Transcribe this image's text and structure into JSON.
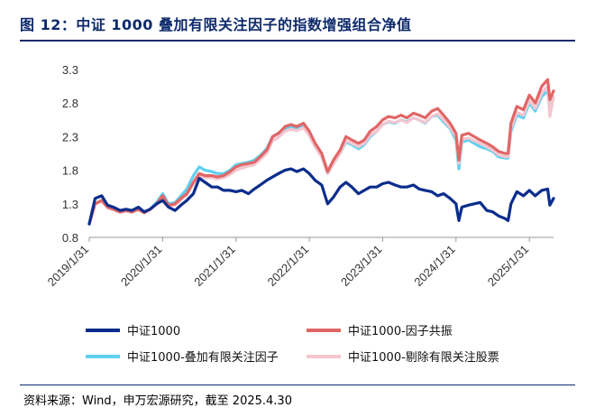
{
  "title": "图 12：中证 1000 叠加有限关注因子的指数增强组合净值",
  "source": "资料来源：Wind，申万宏源研究，截至 2025.4.30",
  "colors": {
    "title": "#0d2a6b",
    "csi1000": "#0a2d8c",
    "resonance": "#e06666",
    "overlay": "#5fd0f0",
    "excluding": "#f4c6cf",
    "axis": "#999999"
  },
  "chart_data": {
    "type": "line",
    "title": "中证 1000 叠加有限关注因子的指数增强组合净值",
    "xlabel": "",
    "ylabel": "",
    "x_ticks": [
      "2019/1/31",
      "2020/1/31",
      "2021/1/31",
      "2022/1/31",
      "2023/1/31",
      "2024/1/31",
      "2025/1/31"
    ],
    "x_range": [
      2019.0,
      2025.33
    ],
    "ylim": [
      0.8,
      3.3
    ],
    "y_ticks": [
      0.8,
      1.3,
      1.8,
      2.3,
      2.8,
      3.3
    ],
    "y_tick_labels": [
      "0.8",
      "1.3",
      "1.8",
      "2.3",
      "2.8",
      "3.3"
    ],
    "legend_position": "bottom",
    "series": [
      {
        "name": "中证1000",
        "color": "#0a2d8c",
        "width": 3.2,
        "x": [
          2019.0,
          2019.08,
          2019.17,
          2019.25,
          2019.33,
          2019.42,
          2019.5,
          2019.58,
          2019.67,
          2019.75,
          2019.83,
          2019.92,
          2020.0,
          2020.08,
          2020.17,
          2020.25,
          2020.33,
          2020.42,
          2020.5,
          2020.58,
          2020.67,
          2020.75,
          2020.83,
          2020.92,
          2021.0,
          2021.08,
          2021.17,
          2021.25,
          2021.33,
          2021.42,
          2021.5,
          2021.58,
          2021.67,
          2021.75,
          2021.83,
          2021.92,
          2022.0,
          2022.08,
          2022.17,
          2022.25,
          2022.33,
          2022.42,
          2022.5,
          2022.58,
          2022.67,
          2022.75,
          2022.83,
          2022.92,
          2023.0,
          2023.08,
          2023.17,
          2023.25,
          2023.33,
          2023.42,
          2023.5,
          2023.58,
          2023.67,
          2023.75,
          2023.83,
          2023.92,
          2024.0,
          2024.04,
          2024.08,
          2024.17,
          2024.25,
          2024.33,
          2024.42,
          2024.5,
          2024.58,
          2024.67,
          2024.71,
          2024.75,
          2024.83,
          2024.92,
          2025.0,
          2025.08,
          2025.17,
          2025.25,
          2025.28,
          2025.33
        ],
        "y": [
          1.0,
          1.38,
          1.42,
          1.28,
          1.25,
          1.2,
          1.22,
          1.2,
          1.25,
          1.18,
          1.22,
          1.3,
          1.35,
          1.25,
          1.2,
          1.28,
          1.35,
          1.45,
          1.68,
          1.62,
          1.55,
          1.55,
          1.5,
          1.5,
          1.48,
          1.5,
          1.45,
          1.52,
          1.58,
          1.65,
          1.7,
          1.75,
          1.8,
          1.82,
          1.78,
          1.82,
          1.75,
          1.65,
          1.58,
          1.3,
          1.4,
          1.55,
          1.62,
          1.55,
          1.45,
          1.5,
          1.55,
          1.55,
          1.6,
          1.62,
          1.58,
          1.55,
          1.55,
          1.58,
          1.52,
          1.5,
          1.48,
          1.42,
          1.45,
          1.38,
          1.3,
          1.05,
          1.25,
          1.28,
          1.3,
          1.32,
          1.2,
          1.18,
          1.12,
          1.08,
          1.05,
          1.3,
          1.48,
          1.42,
          1.5,
          1.42,
          1.5,
          1.52,
          1.28,
          1.38
        ]
      },
      {
        "name": "中证1000-因子共振",
        "color": "#e06666",
        "width": 3.2,
        "x": [
          2019.0,
          2019.08,
          2019.17,
          2019.25,
          2019.33,
          2019.42,
          2019.5,
          2019.58,
          2019.67,
          2019.75,
          2019.83,
          2019.92,
          2020.0,
          2020.08,
          2020.17,
          2020.25,
          2020.33,
          2020.42,
          2020.5,
          2020.58,
          2020.67,
          2020.75,
          2020.83,
          2020.92,
          2021.0,
          2021.08,
          2021.17,
          2021.25,
          2021.33,
          2021.42,
          2021.5,
          2021.58,
          2021.67,
          2021.75,
          2021.83,
          2021.92,
          2022.0,
          2022.08,
          2022.17,
          2022.25,
          2022.33,
          2022.42,
          2022.5,
          2022.58,
          2022.67,
          2022.75,
          2022.83,
          2022.92,
          2023.0,
          2023.08,
          2023.17,
          2023.25,
          2023.33,
          2023.42,
          2023.5,
          2023.58,
          2023.67,
          2023.75,
          2023.83,
          2023.92,
          2024.0,
          2024.04,
          2024.08,
          2024.17,
          2024.25,
          2024.33,
          2024.42,
          2024.5,
          2024.58,
          2024.67,
          2024.71,
          2024.75,
          2024.83,
          2024.92,
          2025.0,
          2025.08,
          2025.17,
          2025.25,
          2025.28,
          2025.33
        ],
        "y": [
          1.0,
          1.3,
          1.35,
          1.25,
          1.22,
          1.18,
          1.2,
          1.18,
          1.22,
          1.17,
          1.22,
          1.3,
          1.42,
          1.28,
          1.3,
          1.38,
          1.45,
          1.62,
          1.75,
          1.72,
          1.72,
          1.7,
          1.72,
          1.78,
          1.85,
          1.88,
          1.9,
          1.92,
          2.0,
          2.1,
          2.3,
          2.35,
          2.45,
          2.48,
          2.45,
          2.5,
          2.38,
          2.2,
          2.05,
          1.78,
          1.95,
          2.1,
          2.3,
          2.25,
          2.2,
          2.25,
          2.38,
          2.45,
          2.55,
          2.6,
          2.58,
          2.62,
          2.58,
          2.65,
          2.62,
          2.58,
          2.68,
          2.72,
          2.62,
          2.5,
          2.35,
          1.95,
          2.32,
          2.35,
          2.3,
          2.25,
          2.2,
          2.15,
          2.08,
          2.05,
          2.05,
          2.5,
          2.75,
          2.7,
          2.92,
          2.8,
          3.05,
          3.15,
          2.85,
          2.98
        ]
      },
      {
        "name": "中证1000-叠加有限关注因子",
        "color": "#5fd0f0",
        "width": 3.2,
        "x": [
          2019.0,
          2019.08,
          2019.17,
          2019.25,
          2019.33,
          2019.42,
          2019.5,
          2019.58,
          2019.67,
          2019.75,
          2019.83,
          2019.92,
          2020.0,
          2020.08,
          2020.17,
          2020.25,
          2020.33,
          2020.42,
          2020.5,
          2020.58,
          2020.67,
          2020.75,
          2020.83,
          2020.92,
          2021.0,
          2021.08,
          2021.17,
          2021.25,
          2021.33,
          2021.42,
          2021.5,
          2021.58,
          2021.67,
          2021.75,
          2021.83,
          2021.92,
          2022.0,
          2022.08,
          2022.17,
          2022.25,
          2022.33,
          2022.42,
          2022.5,
          2022.58,
          2022.67,
          2022.75,
          2022.83,
          2022.92,
          2023.0,
          2023.08,
          2023.17,
          2023.25,
          2023.33,
          2023.42,
          2023.5,
          2023.58,
          2023.67,
          2023.75,
          2023.83,
          2023.92,
          2024.0,
          2024.04,
          2024.08,
          2024.17,
          2024.25,
          2024.33,
          2024.42,
          2024.5,
          2024.58,
          2024.67,
          2024.71,
          2024.75,
          2024.83,
          2024.92,
          2025.0,
          2025.08,
          2025.17,
          2025.25,
          2025.28,
          2025.33
        ],
        "y": [
          1.0,
          1.3,
          1.35,
          1.25,
          1.22,
          1.18,
          1.2,
          1.18,
          1.22,
          1.17,
          1.22,
          1.32,
          1.45,
          1.3,
          1.32,
          1.42,
          1.52,
          1.72,
          1.85,
          1.8,
          1.78,
          1.75,
          1.75,
          1.8,
          1.88,
          1.9,
          1.92,
          1.95,
          2.02,
          2.12,
          2.3,
          2.35,
          2.4,
          2.45,
          2.42,
          2.45,
          2.32,
          2.15,
          2.0,
          1.75,
          1.9,
          2.05,
          2.22,
          2.18,
          2.12,
          2.18,
          2.3,
          2.38,
          2.48,
          2.52,
          2.5,
          2.55,
          2.52,
          2.58,
          2.55,
          2.5,
          2.6,
          2.62,
          2.52,
          2.42,
          2.25,
          1.82,
          2.22,
          2.25,
          2.2,
          2.15,
          2.12,
          2.08,
          2.0,
          1.98,
          1.98,
          2.38,
          2.62,
          2.58,
          2.8,
          2.68,
          2.9,
          2.98,
          2.7,
          2.88
        ]
      },
      {
        "name": "中证1000-剔除有限关注股票",
        "color": "#f4c6cf",
        "width": 3.2,
        "x": [
          2019.0,
          2019.08,
          2019.17,
          2019.25,
          2019.33,
          2019.42,
          2019.5,
          2019.58,
          2019.67,
          2019.75,
          2019.83,
          2019.92,
          2020.0,
          2020.08,
          2020.17,
          2020.25,
          2020.33,
          2020.42,
          2020.5,
          2020.58,
          2020.67,
          2020.75,
          2020.83,
          2020.92,
          2021.0,
          2021.08,
          2021.17,
          2021.25,
          2021.33,
          2021.42,
          2021.5,
          2021.58,
          2021.67,
          2021.75,
          2021.83,
          2021.92,
          2022.0,
          2022.08,
          2022.17,
          2022.25,
          2022.33,
          2022.42,
          2022.5,
          2022.58,
          2022.67,
          2022.75,
          2022.83,
          2022.92,
          2023.0,
          2023.08,
          2023.17,
          2023.25,
          2023.33,
          2023.42,
          2023.5,
          2023.58,
          2023.67,
          2023.75,
          2023.83,
          2023.92,
          2024.0,
          2024.04,
          2024.08,
          2024.17,
          2024.25,
          2024.33,
          2024.42,
          2024.5,
          2024.58,
          2024.67,
          2024.71,
          2024.75,
          2024.83,
          2024.92,
          2025.0,
          2025.08,
          2025.17,
          2025.25,
          2025.28,
          2025.33
        ],
        "y": [
          1.0,
          1.3,
          1.34,
          1.24,
          1.21,
          1.17,
          1.19,
          1.17,
          1.21,
          1.16,
          1.21,
          1.3,
          1.4,
          1.27,
          1.28,
          1.36,
          1.43,
          1.6,
          1.72,
          1.69,
          1.69,
          1.67,
          1.69,
          1.74,
          1.8,
          1.83,
          1.86,
          1.88,
          1.96,
          2.05,
          2.24,
          2.29,
          2.38,
          2.41,
          2.39,
          2.43,
          2.32,
          2.15,
          2.0,
          1.75,
          1.9,
          2.05,
          2.24,
          2.2,
          2.15,
          2.2,
          2.32,
          2.38,
          2.48,
          2.53,
          2.51,
          2.55,
          2.51,
          2.58,
          2.55,
          2.51,
          2.6,
          2.64,
          2.55,
          2.44,
          2.3,
          1.9,
          2.26,
          2.28,
          2.24,
          2.2,
          2.15,
          2.1,
          2.03,
          2.0,
          2.0,
          2.42,
          2.66,
          2.62,
          2.84,
          2.72,
          2.95,
          3.05,
          2.6,
          2.9
        ]
      }
    ]
  }
}
